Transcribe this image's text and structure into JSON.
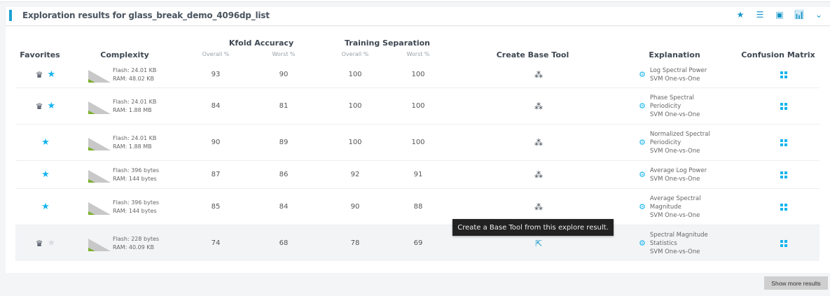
{
  "header": {
    "title": "Exploration results for glass_break_demo_4096dp_list",
    "icons": [
      "star-icon",
      "list-icon",
      "chip-icon",
      "bar-chart-icon",
      "chevron-down-icon"
    ]
  },
  "columns": {
    "favorites": "Favorites",
    "complexity": "Complexity",
    "kfold": "Kfold Accuracy",
    "training": "Training Separation",
    "overall": "Overall %",
    "worst": "Worst %",
    "create": "Create Base Tool",
    "explanation": "Explanation",
    "confusion": "Confusion Matrix"
  },
  "rows": [
    {
      "crown": true,
      "favorite": true,
      "flash": "Flash: 24.01 KB",
      "ram": "RAM: 48.02 KB",
      "k_overall": "93",
      "k_worst": "90",
      "t_overall": "100",
      "t_worst": "100",
      "feature": "Log Spectral Power",
      "model": "SVM One-vs-One"
    },
    {
      "crown": true,
      "favorite": true,
      "flash": "Flash: 24.01 KB",
      "ram": "RAM: 1.88 MB",
      "k_overall": "84",
      "k_worst": "81",
      "t_overall": "100",
      "t_worst": "100",
      "feature": "Phase Spectral Periodicity",
      "model": "SVM One-vs-One"
    },
    {
      "crown": false,
      "favorite": true,
      "flash": "Flash: 24.01 KB",
      "ram": "RAM: 1.88 MB",
      "k_overall": "90",
      "k_worst": "89",
      "t_overall": "100",
      "t_worst": "100",
      "feature": "Normalized Spectral Periodicity",
      "model": "SVM One-vs-One"
    },
    {
      "crown": false,
      "favorite": true,
      "flash": "Flash: 396 bytes",
      "ram": "RAM: 144 bytes",
      "k_overall": "87",
      "k_worst": "86",
      "t_overall": "92",
      "t_worst": "91",
      "feature": "Average Log Power",
      "model": "SVM One-vs-One"
    },
    {
      "crown": false,
      "favorite": true,
      "flash": "Flash: 396 bytes",
      "ram": "RAM: 144 bytes",
      "k_overall": "85",
      "k_worst": "84",
      "t_overall": "90",
      "t_worst": "88",
      "feature": "Average Spectral Magnitude",
      "model": "SVM One-vs-One"
    },
    {
      "crown": true,
      "favorite": false,
      "flash": "Flash: 228 bytes",
      "ram": "RAM: 40.09 KB",
      "k_overall": "74",
      "k_worst": "68",
      "t_overall": "78",
      "t_worst": "69",
      "feature": "Spectral Magnitude Statistics",
      "model": "SVM One-vs-One"
    }
  ],
  "tooltip": "Create a Base Tool from this explore result.",
  "show_more": "Show more results",
  "colors": {
    "accent": "#1ba0d2",
    "icon_blue": "#14b4ee",
    "complexity_green": "#7bb02a"
  }
}
